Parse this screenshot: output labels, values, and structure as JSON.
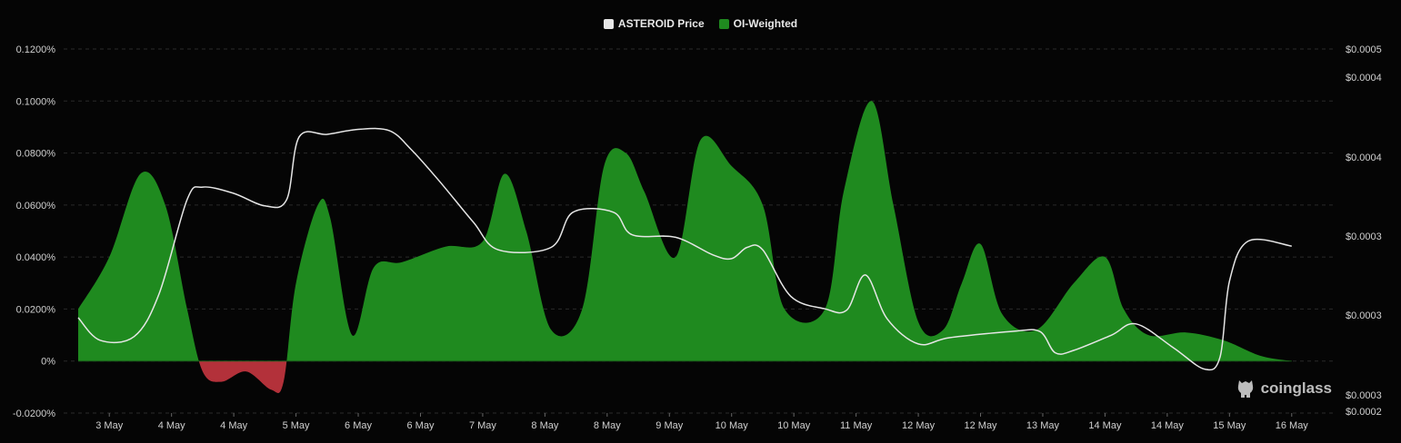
{
  "legend": {
    "price_label": "ASTEROID Price",
    "price_color": "#e6e6e6",
    "funding_label": "OI-Weighted",
    "funding_color": "#1f8a1f"
  },
  "watermark": {
    "text": "coinglass",
    "icon": "coinglass-logo-icon"
  },
  "chart_data": {
    "type": "area",
    "title": "",
    "left_axis": {
      "ticks": [
        0.12,
        0.1,
        0.08,
        0.06,
        0.04,
        0.02,
        0,
        -0.02
      ],
      "tick_labels": [
        "0.1200%",
        "0.1000%",
        "0.0800%",
        "0.0600%",
        "0.0400%",
        "0.0200%",
        "0%",
        "-0.0200%"
      ],
      "range": [
        -0.02,
        0.12
      ]
    },
    "right_axis": {
      "tick_labels": [
        "$0.0005",
        "$0.0004",
        "$0.0004",
        "$0.0003",
        "$0.0003",
        "$0.0003",
        "$0.0002"
      ],
      "range": [
        0.00021,
        0.0005
      ]
    },
    "x_labels": [
      "3 May",
      "4 May",
      "4 May",
      "5 May",
      "6 May",
      "6 May",
      "7 May",
      "8 May",
      "8 May",
      "9 May",
      "10 May",
      "10 May",
      "11 May",
      "12 May",
      "12 May",
      "13 May",
      "14 May",
      "14 May",
      "15 May",
      "16 May"
    ],
    "x_range": [
      0,
      20
    ],
    "positive_color": "#1f8a1f",
    "negative_color": "#b3313a",
    "series": [
      {
        "name": "OI-Weighted",
        "unit": "%",
        "points": [
          [
            0.0,
            0.02
          ],
          [
            0.5,
            0.04
          ],
          [
            1.0,
            0.072
          ],
          [
            1.4,
            0.06
          ],
          [
            1.75,
            0.02
          ],
          [
            2.0,
            -0.004
          ],
          [
            2.3,
            -0.008
          ],
          [
            2.7,
            -0.004
          ],
          [
            3.1,
            -0.011
          ],
          [
            3.3,
            -0.008
          ],
          [
            3.5,
            0.03
          ],
          [
            3.85,
            0.06
          ],
          [
            4.05,
            0.055
          ],
          [
            4.4,
            0.01
          ],
          [
            4.75,
            0.036
          ],
          [
            5.2,
            0.038
          ],
          [
            5.9,
            0.044
          ],
          [
            6.5,
            0.046
          ],
          [
            6.85,
            0.072
          ],
          [
            7.2,
            0.05
          ],
          [
            7.6,
            0.012
          ],
          [
            8.1,
            0.02
          ],
          [
            8.45,
            0.075
          ],
          [
            8.8,
            0.08
          ],
          [
            9.1,
            0.065
          ],
          [
            9.6,
            0.04
          ],
          [
            10.0,
            0.085
          ],
          [
            10.5,
            0.075
          ],
          [
            11.0,
            0.06
          ],
          [
            11.35,
            0.02
          ],
          [
            12.0,
            0.02
          ],
          [
            12.3,
            0.065
          ],
          [
            12.75,
            0.1
          ],
          [
            13.1,
            0.06
          ],
          [
            13.5,
            0.015
          ],
          [
            13.9,
            0.012
          ],
          [
            14.2,
            0.03
          ],
          [
            14.5,
            0.045
          ],
          [
            14.85,
            0.018
          ],
          [
            15.4,
            0.012
          ],
          [
            16.0,
            0.03
          ],
          [
            16.5,
            0.04
          ],
          [
            16.8,
            0.02
          ],
          [
            17.2,
            0.01
          ],
          [
            17.8,
            0.011
          ],
          [
            18.4,
            0.008
          ],
          [
            19.0,
            0.002
          ],
          [
            19.5,
            0.0
          ]
        ]
      },
      {
        "name": "ASTEROID Price",
        "unit": "$",
        "points": [
          [
            0.0,
            0.000286
          ],
          [
            0.35,
            0.000268
          ],
          [
            0.9,
            0.000271
          ],
          [
            1.3,
            0.000305
          ],
          [
            1.75,
            0.00038
          ],
          [
            2.0,
            0.00039
          ],
          [
            2.5,
            0.000385
          ],
          [
            3.0,
            0.000375
          ],
          [
            3.35,
            0.00038
          ],
          [
            3.55,
            0.00043
          ],
          [
            4.0,
            0.000432
          ],
          [
            4.5,
            0.000436
          ],
          [
            5.0,
            0.000435
          ],
          [
            5.35,
            0.00042
          ],
          [
            5.8,
            0.000395
          ],
          [
            6.35,
            0.000362
          ],
          [
            6.75,
            0.00034
          ],
          [
            7.6,
            0.000342
          ],
          [
            7.95,
            0.00037
          ],
          [
            8.6,
            0.00037
          ],
          [
            8.9,
            0.000352
          ],
          [
            9.6,
            0.00035
          ],
          [
            10.2,
            0.000336
          ],
          [
            10.5,
            0.000333
          ],
          [
            10.75,
            0.000342
          ],
          [
            11.0,
            0.00034
          ],
          [
            11.45,
            0.000303
          ],
          [
            12.0,
            0.000293
          ],
          [
            12.35,
            0.000292
          ],
          [
            12.65,
            0.00032
          ],
          [
            13.0,
            0.000285
          ],
          [
            13.5,
            0.000265
          ],
          [
            14.0,
            0.00027
          ],
          [
            15.0,
            0.000275
          ],
          [
            15.45,
            0.000275
          ],
          [
            15.7,
            0.000258
          ],
          [
            16.0,
            0.00026
          ],
          [
            16.6,
            0.000272
          ],
          [
            17.0,
            0.000281
          ],
          [
            17.6,
            0.000262
          ],
          [
            18.1,
            0.000245
          ],
          [
            18.35,
            0.000255
          ],
          [
            18.5,
            0.000315
          ],
          [
            18.8,
            0.000347
          ],
          [
            19.5,
            0.000343
          ]
        ]
      }
    ]
  }
}
